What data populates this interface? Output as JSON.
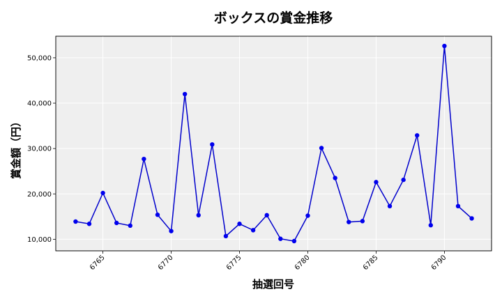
{
  "chart_data": {
    "type": "line",
    "title": "ボックスの賞金推移",
    "xlabel": "抽選回号",
    "ylabel": "賞金額（円）",
    "x": [
      6763,
      6764,
      6765,
      6766,
      6767,
      6768,
      6769,
      6770,
      6771,
      6772,
      6773,
      6774,
      6775,
      6776,
      6777,
      6778,
      6779,
      6780,
      6781,
      6782,
      6783,
      6784,
      6785,
      6786,
      6787,
      6788,
      6789,
      6790,
      6791,
      6792
    ],
    "series": [
      {
        "values": [
          13900,
          13400,
          20200,
          13600,
          13000,
          27700,
          15400,
          11800,
          42000,
          15300,
          30900,
          10700,
          13400,
          12000,
          15300,
          10100,
          9600,
          15200,
          30100,
          23500,
          13800,
          14000,
          22600,
          17300,
          23100,
          32900,
          13100,
          52600,
          17300,
          14600
        ]
      }
    ],
    "xticks": [
      "6765",
      "6770",
      "6775",
      "6780",
      "6785",
      "6790"
    ],
    "yticks": [
      "10,000",
      "20,000",
      "30,000",
      "40,000",
      "50,000"
    ],
    "xlim": [
      6761.55,
      6793.45
    ],
    "ylim": [
      7450,
      54750
    ],
    "grid": true,
    "colors": {
      "line": "#0000cc",
      "marker": "#0000ee",
      "plot_bg": "#efefef",
      "grid": "#ffffff"
    }
  }
}
